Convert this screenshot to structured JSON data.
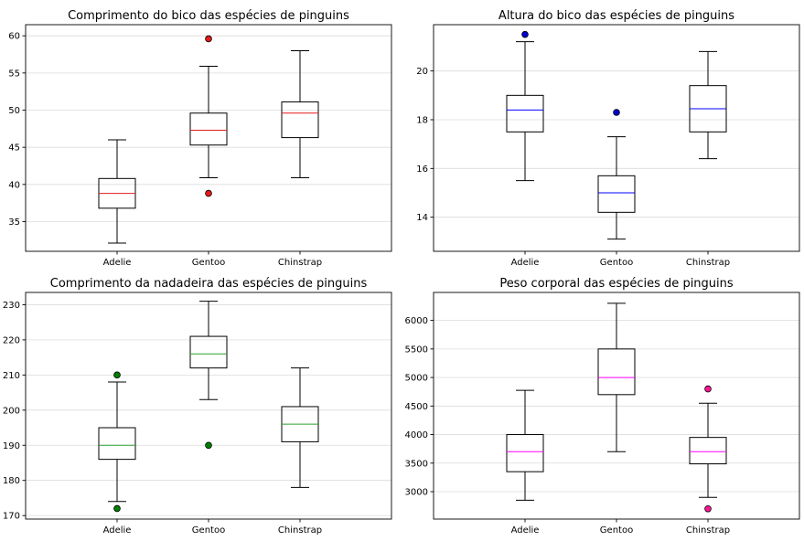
{
  "chart_data": [
    {
      "type": "box",
      "title": "Comprimento do bico das espécies de pinguins",
      "categories": [
        "Adelie",
        "Gentoo",
        "Chinstrap"
      ],
      "median_color": "#e41a1c",
      "flier_color": "#e41a1c",
      "ylim": [
        31,
        61.5
      ],
      "yticks": [
        35,
        40,
        45,
        50,
        55,
        60
      ],
      "grid": true,
      "boxes": [
        {
          "whislo": 32.1,
          "q1": 36.8,
          "med": 38.8,
          "q3": 40.8,
          "whishi": 46.0,
          "fliers": []
        },
        {
          "whislo": 40.9,
          "q1": 45.3,
          "med": 47.3,
          "q3": 49.6,
          "whishi": 55.9,
          "fliers": [
            59.6,
            38.8
          ]
        },
        {
          "whislo": 40.9,
          "q1": 46.3,
          "med": 49.6,
          "q3": 51.1,
          "whishi": 58.0,
          "fliers": []
        }
      ]
    },
    {
      "type": "box",
      "title": "Altura do bico das espécies de pinguins",
      "categories": [
        "Adelie",
        "Gentoo",
        "Chinstrap"
      ],
      "median_color": "#0000ff",
      "flier_color": "#0000cc",
      "ylim": [
        12.6,
        21.9
      ],
      "yticks": [
        14,
        16,
        18,
        20
      ],
      "grid": true,
      "boxes": [
        {
          "whislo": 15.5,
          "q1": 17.5,
          "med": 18.4,
          "q3": 19.0,
          "whishi": 21.2,
          "fliers": [
            21.5
          ]
        },
        {
          "whislo": 13.1,
          "q1": 14.2,
          "med": 15.0,
          "q3": 15.7,
          "whishi": 17.3,
          "fliers": [
            18.3
          ]
        },
        {
          "whislo": 16.4,
          "q1": 17.5,
          "med": 18.45,
          "q3": 19.4,
          "whishi": 20.8,
          "fliers": []
        }
      ]
    },
    {
      "type": "box",
      "title": "Comprimento da nadadeira das espécies de pinguins",
      "categories": [
        "Adelie",
        "Gentoo",
        "Chinstrap"
      ],
      "median_color": "#2ca02c",
      "flier_color": "#008000",
      "ylim": [
        169,
        233.5
      ],
      "yticks": [
        170,
        180,
        190,
        200,
        210,
        220,
        230
      ],
      "grid": true,
      "boxes": [
        {
          "whislo": 174,
          "q1": 186,
          "med": 190,
          "q3": 195,
          "whishi": 208,
          "fliers": [
            210,
            172
          ]
        },
        {
          "whislo": 203,
          "q1": 212,
          "med": 216,
          "q3": 221,
          "whishi": 231,
          "fliers": [
            190
          ]
        },
        {
          "whislo": 178,
          "q1": 191,
          "med": 196,
          "q3": 201,
          "whishi": 212,
          "fliers": []
        }
      ]
    },
    {
      "type": "box",
      "title": "Peso corporal das espécies de pinguins",
      "categories": [
        "Adelie",
        "Gentoo",
        "Chinstrap"
      ],
      "median_color": "#ff00ff",
      "flier_color": "#ff1493",
      "ylim": [
        2520,
        6490
      ],
      "yticks": [
        3000,
        3500,
        4000,
        4500,
        5000,
        5500,
        6000
      ],
      "grid": true,
      "boxes": [
        {
          "whislo": 2850,
          "q1": 3350,
          "med": 3700,
          "q3": 4000,
          "whishi": 4775,
          "fliers": []
        },
        {
          "whislo": 3700,
          "q1": 4700,
          "med": 5000,
          "q3": 5500,
          "whishi": 6300,
          "fliers": []
        },
        {
          "whislo": 2900,
          "q1": 3487,
          "med": 3700,
          "q3": 3950,
          "whishi": 4550,
          "fliers": [
            4800,
            2700
          ]
        }
      ]
    }
  ]
}
